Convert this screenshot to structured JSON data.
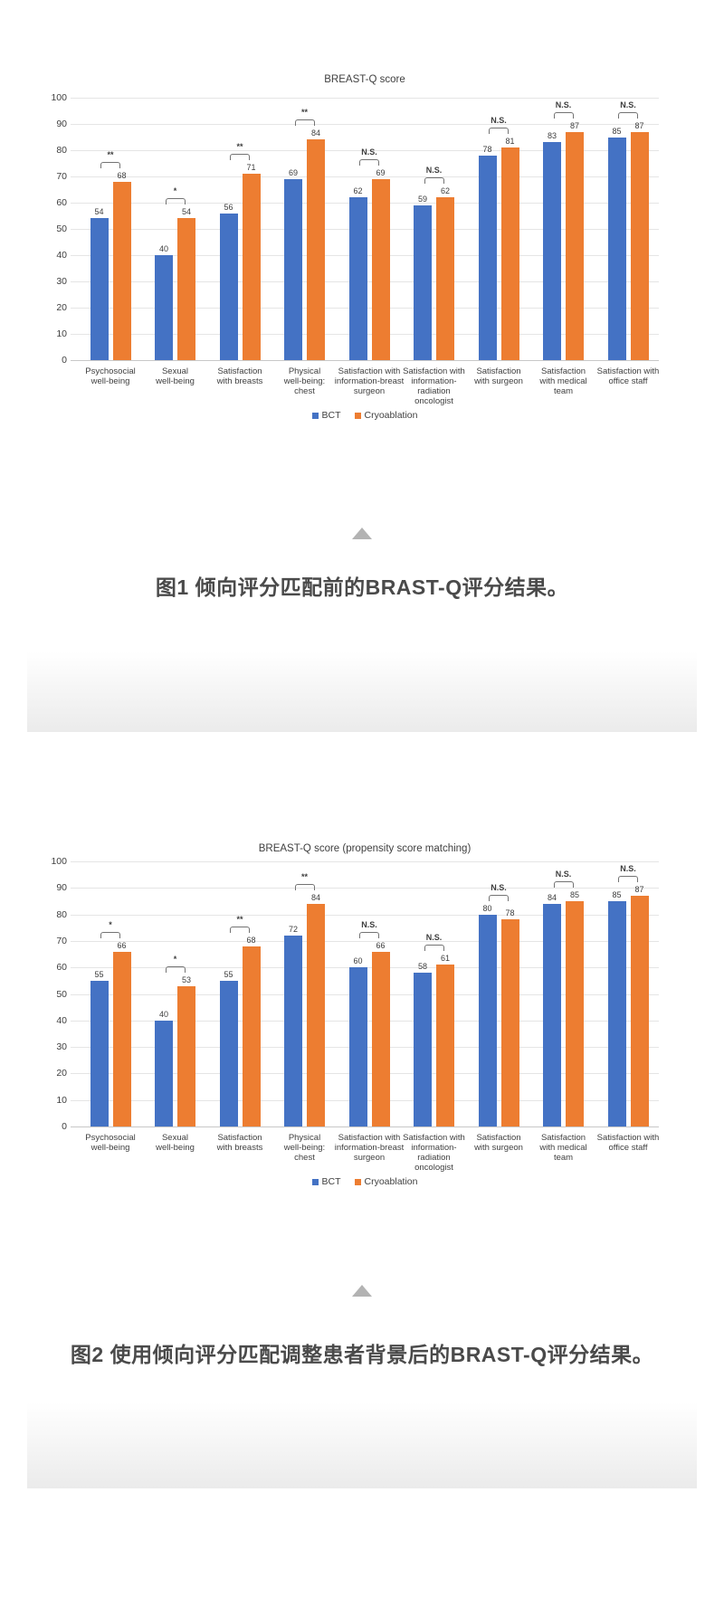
{
  "page": {
    "background": "#ffffff"
  },
  "colors": {
    "bct": "#4472C4",
    "cryoablation": "#ED7D31",
    "text": "#404040",
    "gridline": "#E5E5E5",
    "caption_text": "#4A4A4A",
    "arrow": "#B3B3B3",
    "divider_bottom": "#EBEBEB"
  },
  "figures": [
    {
      "caption": "图1 倾向评分匹配前的BRAST-Q评分结果。",
      "arrow_icon": "triangle-up"
    },
    {
      "caption": "图2 使用倾向评分匹配调整患者背景后的BRAST-Q评分结果。",
      "arrow_icon": "triangle-up"
    }
  ],
  "chart_data": [
    {
      "type": "bar",
      "title": "BREAST-Q score",
      "categories": [
        "Psychosocial well-being",
        "Sexual well-being",
        "Satisfaction with breasts",
        "Physical well-being: chest",
        "Satisfaction with information-breast surgeon",
        "Satisfaction with information-radiation oncologist",
        "Satisfaction with surgeon",
        "Satisfaction with medical team",
        "Satisfaction with office staff"
      ],
      "category_lines": [
        [
          "Psychosocial",
          "well-being"
        ],
        [
          "Sexual",
          "well-being"
        ],
        [
          "Satisfaction",
          "with breasts"
        ],
        [
          "Physical",
          "well-being:",
          "chest"
        ],
        [
          "Satisfaction with",
          "information-breast",
          "surgeon"
        ],
        [
          "Satisfaction with",
          "information-",
          "radiation",
          "oncologist"
        ],
        [
          "Satisfaction",
          "with surgeon"
        ],
        [
          "Satisfaction",
          "with medical",
          "team"
        ],
        [
          "Satisfaction with",
          "office staff"
        ]
      ],
      "series": [
        {
          "name": "BCT",
          "color": "#4472C4",
          "values": [
            54,
            40,
            56,
            69,
            62,
            59,
            78,
            83,
            85
          ]
        },
        {
          "name": "Cryoablation",
          "color": "#ED7D31",
          "values": [
            68,
            54,
            71,
            84,
            69,
            62,
            81,
            87,
            87
          ]
        }
      ],
      "significance": [
        "**",
        "*",
        "**",
        "**",
        "N.S.",
        "N.S.",
        "N.S.",
        "N.S.",
        "N.S."
      ],
      "ylim": [
        0,
        100
      ],
      "ytick_step": 10,
      "grid": true,
      "legend_position": "bottom"
    },
    {
      "type": "bar",
      "title": "BREAST-Q score (propensity score matching)",
      "categories": [
        "Psychosocial well-being",
        "Sexual well-being",
        "Satisfaction with breasts",
        "Physical well-being: chest",
        "Satisfaction with information-breast surgeon",
        "Satisfaction with information-radiation oncologist",
        "Satisfaction with surgeon",
        "Satisfaction with medical team",
        "Satisfaction with office staff"
      ],
      "category_lines": [
        [
          "Psychosocial",
          "well-being"
        ],
        [
          "Sexual",
          "well-being"
        ],
        [
          "Satisfaction",
          "with breasts"
        ],
        [
          "Physical",
          "well-being:",
          "chest"
        ],
        [
          "Satisfaction with",
          "information-breast",
          "surgeon"
        ],
        [
          "Satisfaction with",
          "information-",
          "radiation",
          "oncologist"
        ],
        [
          "Satisfaction",
          "with surgeon"
        ],
        [
          "Satisfaction",
          "with medical",
          "team"
        ],
        [
          "Satisfaction with",
          "office staff"
        ]
      ],
      "series": [
        {
          "name": "BCT",
          "color": "#4472C4",
          "values": [
            55,
            40,
            55,
            72,
            60,
            58,
            80,
            84,
            85
          ]
        },
        {
          "name": "Cryoablation",
          "color": "#ED7D31",
          "values": [
            66,
            53,
            68,
            84,
            66,
            61,
            78,
            85,
            87
          ]
        }
      ],
      "significance": [
        "*",
        "*",
        "**",
        "**",
        "N.S.",
        "N.S.",
        "N.S.",
        "N.S.",
        "N.S."
      ],
      "ylim": [
        0,
        100
      ],
      "ytick_step": 10,
      "grid": true,
      "legend_position": "bottom"
    }
  ]
}
